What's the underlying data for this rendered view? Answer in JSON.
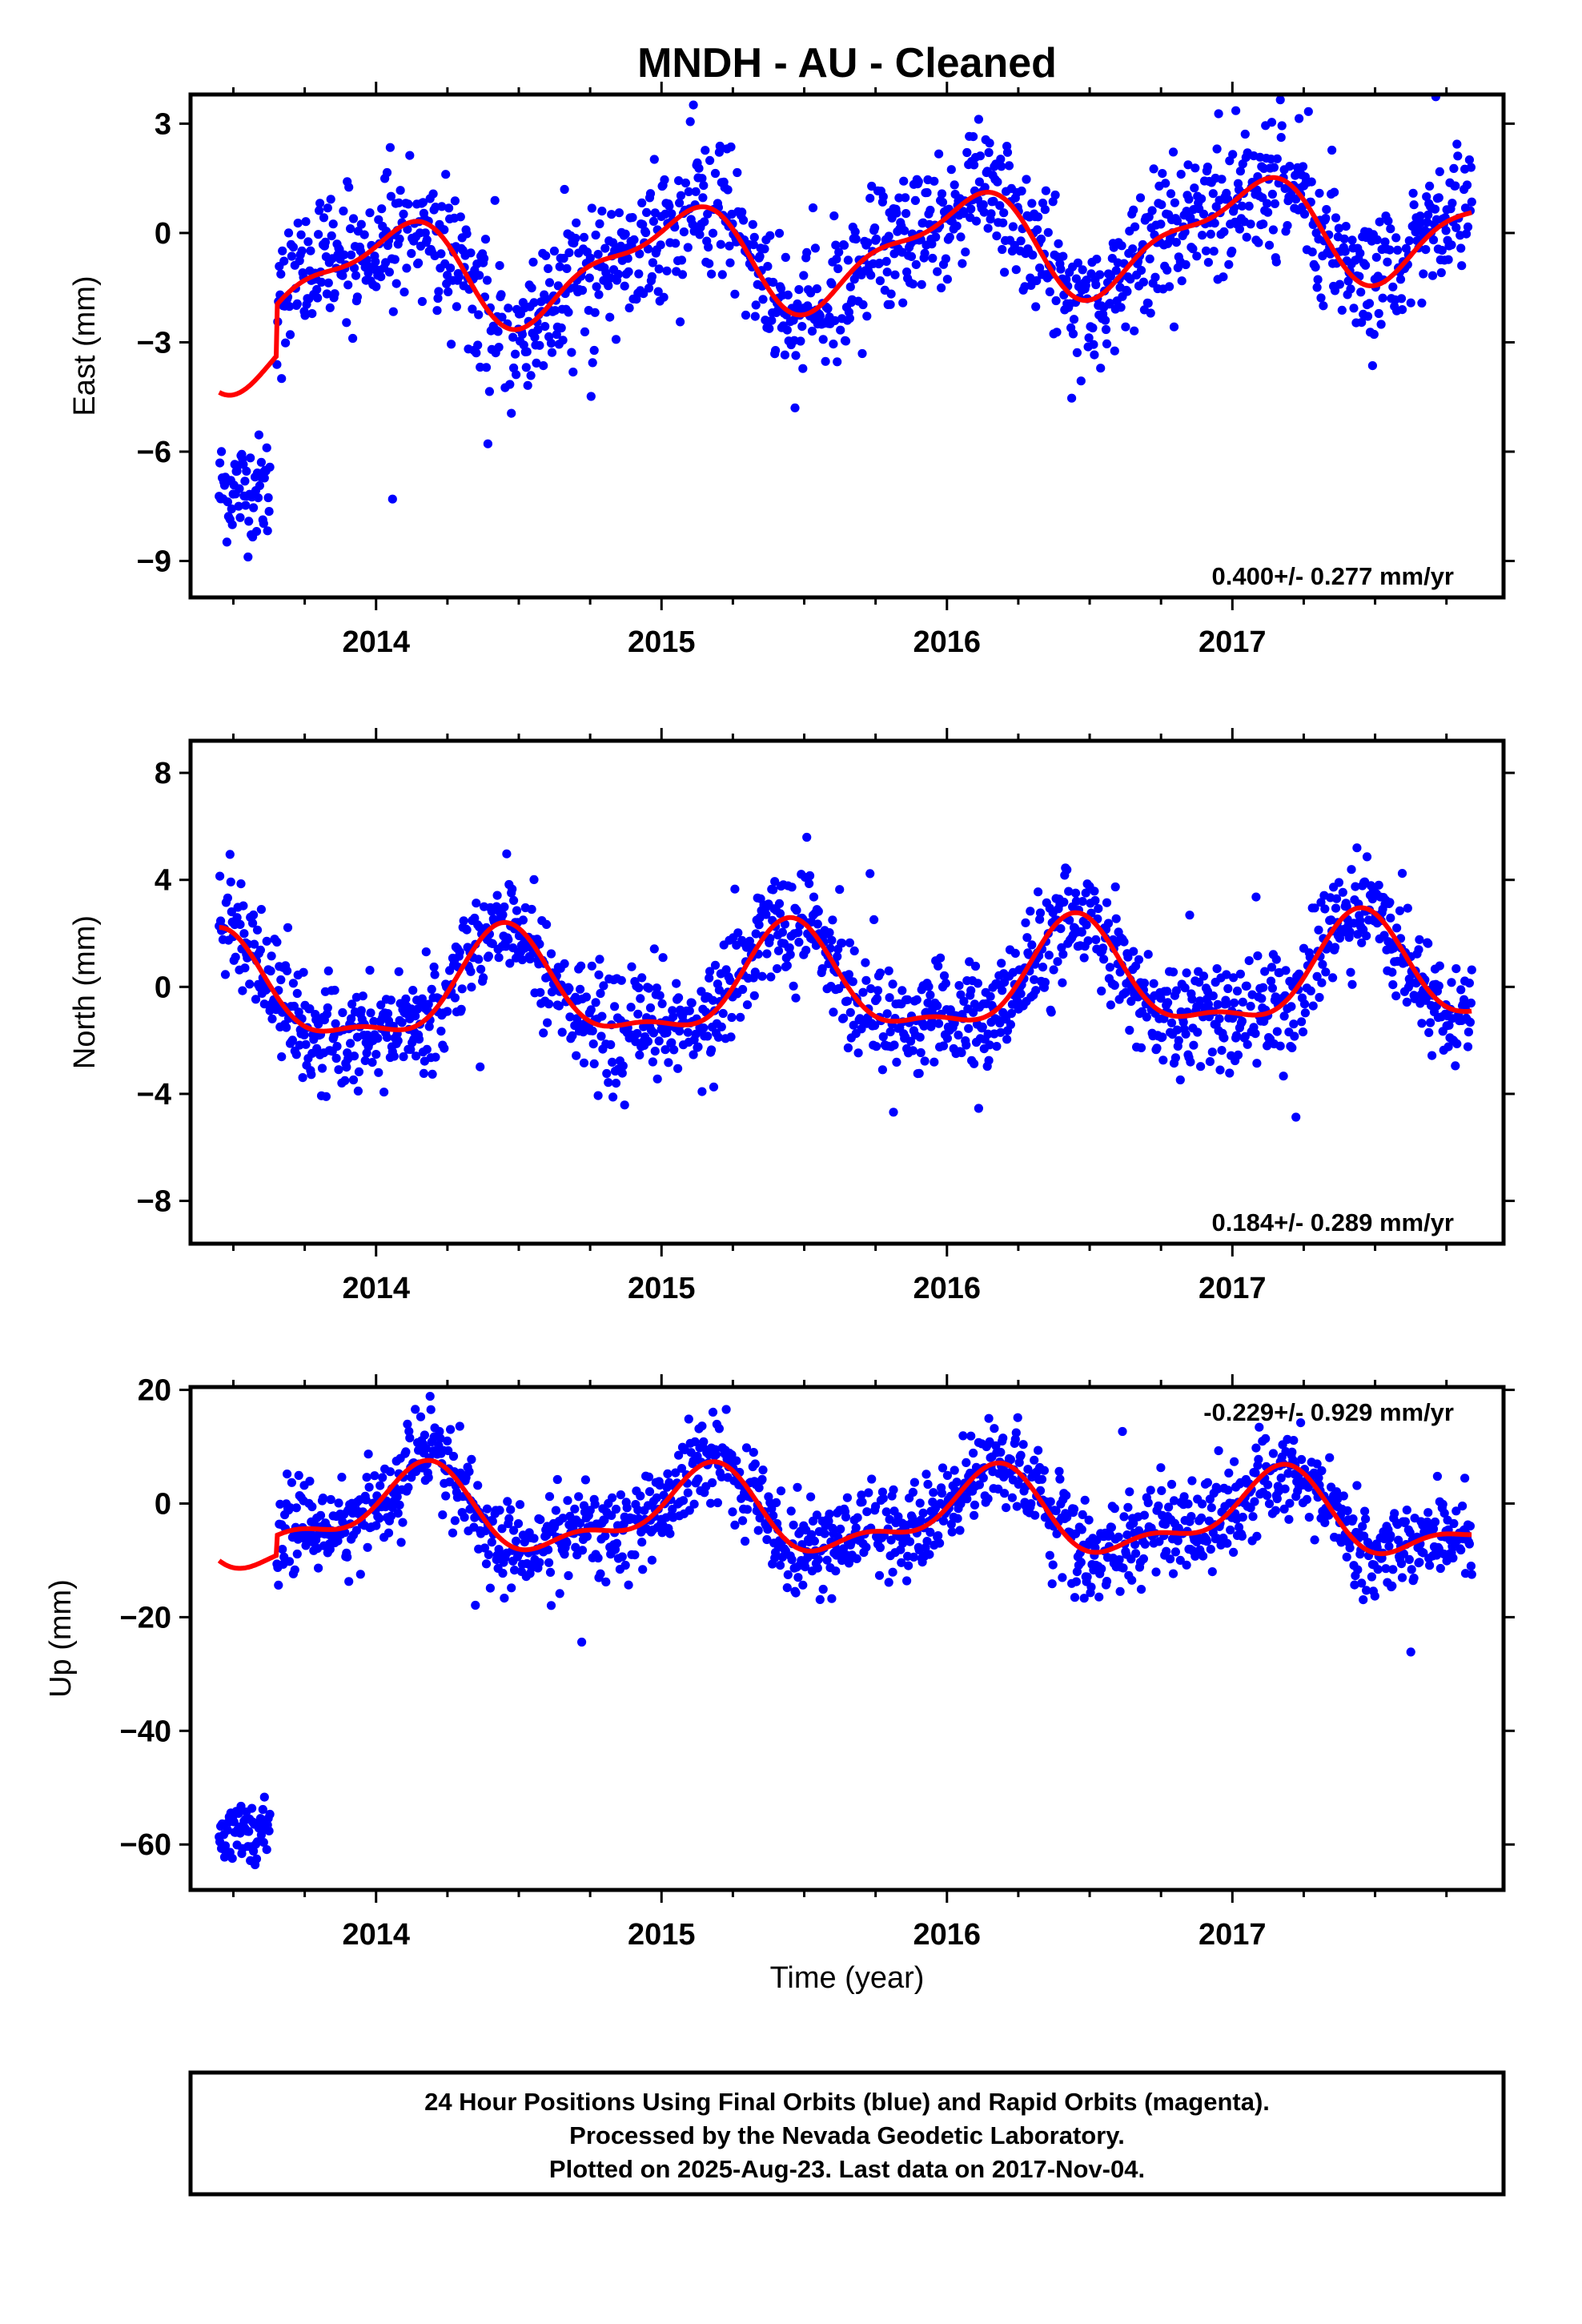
{
  "title": "MNDH  - AU - Cleaned",
  "colors": {
    "points": "#0000ff",
    "fit": "#ff0000",
    "frame": "#000000"
  },
  "footer": {
    "line1": "24 Hour Positions Using Final Orbits (blue) and Rapid Orbits (magenta).",
    "line2": "Processed by the Nevada Geodetic Laboratory.",
    "line3": "Plotted on 2025-Aug-23. Last data on 2017-Nov-04."
  },
  "chart_data": [
    {
      "type": "scatter",
      "ylabel": "East (mm)",
      "xlabel": "",
      "xlim": [
        2013.35,
        2017.95
      ],
      "ylim": [
        -10,
        3.8
      ],
      "xticks": [
        "2014",
        "2015",
        "2016",
        "2017"
      ],
      "yticks": [
        "3",
        "0",
        "−3",
        "−6",
        "−9"
      ],
      "rate_label": "0.400+/- 0.277 mm/yr",
      "rate_position": "bottom-right",
      "fit": {
        "offset": -0.6,
        "rate": 0.4,
        "annual_amp": 1.3,
        "annual_peak": 0.05,
        "semiannual_amp": 0.5,
        "semiannual_peak": 0.2
      },
      "early_segment": {
        "x_start": 2013.45,
        "x_end": 2013.63,
        "mean": -7.0,
        "spread": 1.2,
        "step_at": 2013.65
      },
      "series": [
        {
          "name": "",
          "noise": 0.9,
          "x_start": 2013.45,
          "x_end": 2017.84
        }
      ]
    },
    {
      "type": "scatter",
      "ylabel": "North (mm)",
      "xlabel": "",
      "xlim": [
        2013.35,
        2017.95
      ],
      "ylim": [
        -9.6,
        9.2
      ],
      "xticks": [
        "2014",
        "2015",
        "2016",
        "2017"
      ],
      "yticks": [
        "8",
        "4",
        "0",
        "−4",
        "−8"
      ],
      "rate_label": "0.184+/- 0.289 mm/yr",
      "rate_position": "bottom-right",
      "fit": {
        "offset": 0.0,
        "rate": 0.184,
        "annual_amp": 1.9,
        "annual_peak": 0.45,
        "semiannual_amp": 0.7,
        "semiannual_peak": 0.45
      },
      "early_segment": null,
      "series": [
        {
          "name": "",
          "noise": 1.0,
          "x_start": 2013.45,
          "x_end": 2017.84
        }
      ]
    },
    {
      "type": "scatter",
      "ylabel": "Up (mm)",
      "xlabel": "Time (year)",
      "xlim": [
        2013.35,
        2017.95
      ],
      "ylim": [
        -68,
        20.5
      ],
      "xticks": [
        "2014",
        "2015",
        "2016",
        "2017"
      ],
      "yticks": [
        "20",
        "0",
        "−20",
        "−40",
        "−60"
      ],
      "rate_label": "-0.229+/- 0.929 mm/yr",
      "rate_position": "top-right",
      "fit": {
        "offset": -2.0,
        "rate": -0.229,
        "annual_amp": 6.5,
        "annual_peak": 0.15,
        "semiannual_amp": 3.0,
        "semiannual_peak": 0.2
      },
      "early_segment": {
        "x_start": 2013.45,
        "x_end": 2013.63,
        "mean": -58.0,
        "spread": 3.5,
        "step_at": 2013.65
      },
      "series": [
        {
          "name": "",
          "noise": 4.0,
          "x_start": 2013.45,
          "x_end": 2017.84
        }
      ]
    }
  ]
}
